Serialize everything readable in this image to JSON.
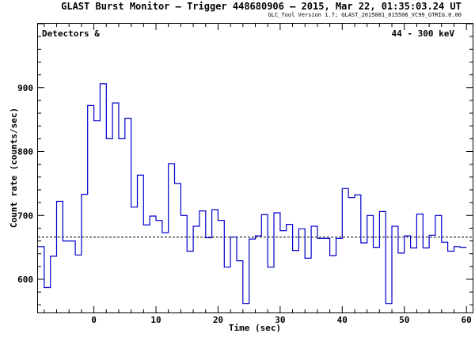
{
  "header": {
    "title": "GLAST Burst Monitor  –  Trigger 448680906  –  2015, Mar 22, 01:35:03.24 UT",
    "subtitle": "GLC_Tool Version 1.7; GLAST_2015081_015506_VC99_GTRIG.0.00"
  },
  "chart_data": {
    "type": "line",
    "style": "step",
    "xlabel": "Time (sec)",
    "ylabel": "Count rate (counts/sec)",
    "xlim": [
      -9,
      61
    ],
    "ylim": [
      548,
      1000
    ],
    "xticks": [
      0,
      10,
      20,
      30,
      40,
      50,
      60
    ],
    "xtick_labels": [
      "0",
      "10",
      "20",
      "30",
      "40",
      "50",
      "60"
    ],
    "yticks": [
      600,
      700,
      800,
      900
    ],
    "ytick_labels": [
      "600",
      "700",
      "800",
      "900"
    ],
    "annotation_left": "Detectors  &",
    "annotation_right": "44 - 300 keV",
    "background_level": 666,
    "line_color": "#0000cc",
    "bin_width": 1,
    "bins_start": -9,
    "counts": [
      651,
      587,
      636,
      722,
      660,
      660,
      638,
      733,
      872,
      848,
      906,
      820,
      876,
      820,
      852,
      713,
      763,
      685,
      699,
      692,
      673,
      781,
      750,
      700,
      644,
      683,
      707,
      665,
      709,
      692,
      619,
      666,
      629,
      562,
      663,
      668,
      701,
      619,
      704,
      676,
      686,
      645,
      679,
      633,
      683,
      664,
      664,
      637,
      664,
      742,
      728,
      732,
      657,
      700,
      650,
      706,
      562,
      683,
      641,
      668,
      649,
      702,
      649,
      669,
      700,
      658,
      644,
      651,
      650
    ]
  }
}
